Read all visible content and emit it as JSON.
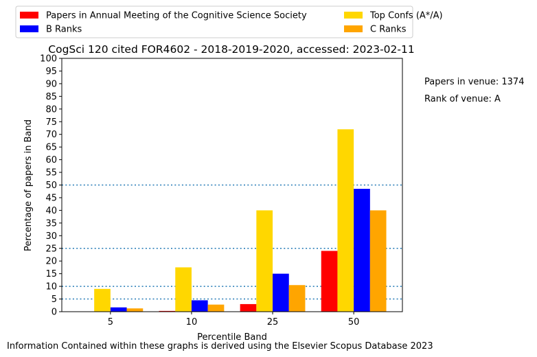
{
  "chart_data": {
    "type": "bar",
    "title": "CogSci 120 cited FOR4602 - 2018-2019-2020, accessed: 2023-02-11",
    "xlabel": "Percentile Band",
    "ylabel": "Percentage of papers in Band",
    "categories": [
      "5",
      "10",
      "25",
      "50"
    ],
    "ylim": [
      0,
      100
    ],
    "yticks": [
      0,
      5,
      10,
      15,
      20,
      25,
      30,
      35,
      40,
      45,
      50,
      55,
      60,
      65,
      70,
      75,
      80,
      85,
      90,
      95,
      100
    ],
    "reference_lines": [
      5,
      10,
      25,
      50
    ],
    "legend_position": "top-left, above plot, two columns",
    "series": [
      {
        "name": "Papers in Annual Meeting of the Cognitive Science Society",
        "color": "#ff0000",
        "values": [
          0,
          0.3,
          3.0,
          24.0
        ]
      },
      {
        "name": "Top Confs (A*/A)",
        "color": "#ffd700",
        "values": [
          9.0,
          17.5,
          40.0,
          72.0
        ]
      },
      {
        "name": "B Ranks",
        "color": "#0000ff",
        "values": [
          1.7,
          4.5,
          15.0,
          48.5
        ]
      },
      {
        "name": "C Ranks",
        "color": "#ffa500",
        "values": [
          1.3,
          2.8,
          10.5,
          40.0
        ]
      }
    ],
    "annotations": {
      "papers_in_venue": "Papers in venue: 1374",
      "rank_of_venue": "Rank of venue: A"
    },
    "footer": "Information Contained within these graphs is derived using the Elsevier Scopus Database 2023"
  }
}
